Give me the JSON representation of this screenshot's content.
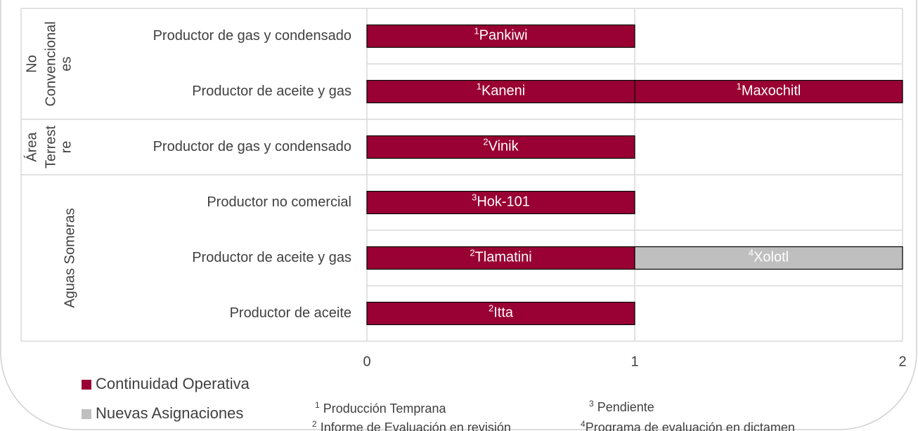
{
  "chart_data": {
    "type": "stacked-bar-horizontal",
    "categories": [
      "Productor de gas y condensado",
      "Productor de aceite y gas",
      "Productor de gas y condensado",
      "Productor no comercial",
      "Productor de aceite y gas",
      "Productor de aceite"
    ],
    "groups": [
      {
        "lines": [
          "No",
          "Convencional",
          "es"
        ],
        "rows": [
          0,
          1
        ]
      },
      {
        "lines": [
          "Área",
          "Terrest",
          "re"
        ],
        "rows": [
          2,
          2
        ]
      },
      {
        "lines": [
          "Aguas Someras"
        ],
        "rows": [
          3,
          5
        ]
      }
    ],
    "legend": [
      {
        "name": "Continuidad Operativa",
        "color": "#990033"
      },
      {
        "name": "Nuevas Asignaciones",
        "color": "#bfbfbf"
      }
    ],
    "bars": [
      {
        "segments": [
          {
            "note": "1",
            "label": "Pankiwi",
            "value": 1,
            "series": 0
          }
        ]
      },
      {
        "segments": [
          {
            "note": "1",
            "label": "Kaneni",
            "value": 1,
            "series": 0
          },
          {
            "note": "1",
            "label": "Maxochitl",
            "value": 1,
            "series": 0
          }
        ]
      },
      {
        "segments": [
          {
            "note": "2",
            "label": "Vinik",
            "value": 1,
            "series": 0
          }
        ]
      },
      {
        "segments": [
          {
            "note": "3",
            "label": "Hok-101",
            "value": 1,
            "series": 0
          }
        ]
      },
      {
        "segments": [
          {
            "note": "2",
            "label": "Tlamatini",
            "value": 1,
            "series": 0
          },
          {
            "note": "4",
            "label": "Xolotl",
            "value": 1,
            "series": 1
          }
        ]
      },
      {
        "segments": [
          {
            "note": "2",
            "label": "Itta",
            "value": 1,
            "series": 0
          }
        ]
      }
    ],
    "xlim": [
      0,
      2
    ],
    "xticks": [
      0,
      1,
      2
    ],
    "grid": true,
    "footnotes": [
      {
        "note": "1",
        "text": " Producción Temprana"
      },
      {
        "note": "3",
        "text": " Pendiente"
      },
      {
        "note": "2",
        "text": " Informe de Evaluación en revisión"
      },
      {
        "note": "4",
        "text": "Programa de evaluación en dictamen"
      }
    ]
  }
}
